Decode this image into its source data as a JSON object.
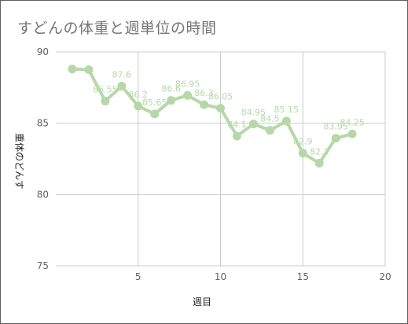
{
  "chart_data": {
    "type": "line",
    "title": "すどんの体重と週単位の時間",
    "xlabel": "週目",
    "ylabel": "重体のどんす",
    "xlim": [
      0,
      20
    ],
    "ylim": [
      75,
      90
    ],
    "x_ticks": [
      5,
      10,
      15,
      20
    ],
    "y_ticks": [
      75,
      80,
      85,
      90
    ],
    "grid": true,
    "series": [
      {
        "color": "#b7d7a8",
        "x": [
          1,
          2,
          3,
          4,
          5,
          6,
          7,
          8,
          9,
          10,
          11,
          12,
          13,
          14,
          15,
          16,
          17,
          18
        ],
        "values": [
          88.8,
          88.75,
          86.55,
          87.6,
          86.2,
          85.65,
          86.6,
          86.95,
          86.3,
          86.05,
          84.1,
          84.95,
          84.5,
          85.15,
          82.9,
          82.2,
          83.95,
          84.25
        ],
        "labels": [
          "",
          "",
          "86.55",
          "87.6",
          "86.2",
          "85.65",
          "86.6",
          "86.95",
          "86.3",
          "86.05",
          "84.1",
          "84.95",
          "84.5",
          "85.15",
          "82.9",
          "82.2",
          "83.95",
          "84.25"
        ]
      }
    ]
  }
}
